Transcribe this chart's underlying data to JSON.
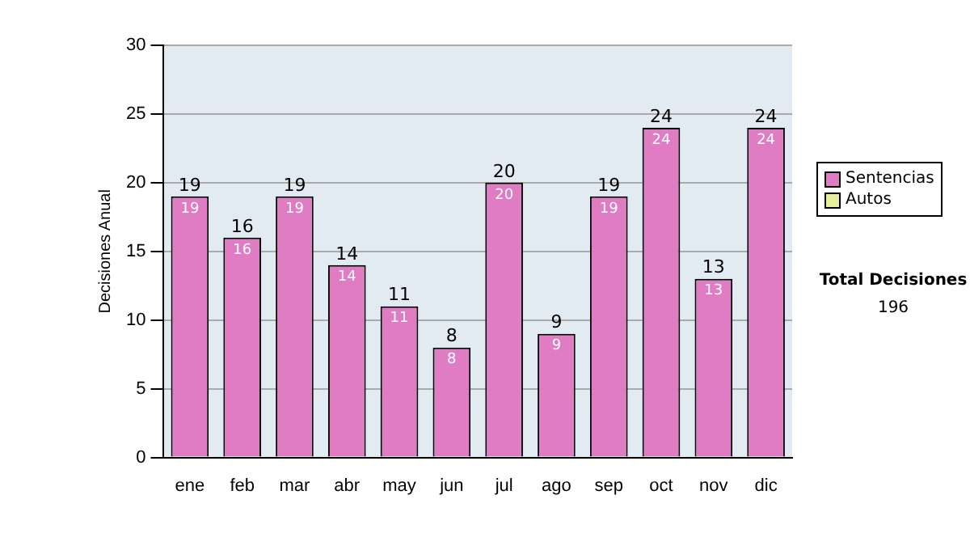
{
  "chart_data": {
    "type": "bar",
    "stacked": true,
    "ylabel": "Decisiones Anual",
    "categories": [
      "ene",
      "feb",
      "mar",
      "abr",
      "may",
      "jun",
      "jul",
      "ago",
      "sep",
      "oct",
      "nov",
      "dic"
    ],
    "series": [
      {
        "name": "Sentencias",
        "color": "#e07cc4",
        "values": [
          19,
          16,
          19,
          14,
          11,
          8,
          20,
          9,
          19,
          24,
          13,
          24
        ],
        "value_labels": [
          "19",
          "16",
          "19",
          "14",
          "11",
          "8",
          "20",
          "9",
          "19",
          "24",
          "13",
          "24"
        ]
      },
      {
        "name": "Autos",
        "color": "#e6f09c",
        "values": [
          0,
          0,
          0,
          0,
          0,
          0,
          0,
          0,
          0,
          0,
          0,
          0
        ]
      }
    ],
    "totals": [
      "19",
      "16",
      "19",
      "14",
      "11",
      "8",
      "20",
      "9",
      "19",
      "24",
      "13",
      "24"
    ],
    "ylim": [
      0,
      30
    ],
    "yticks": [
      0,
      5,
      10,
      15,
      20,
      25,
      30
    ],
    "grid": "y",
    "legend": "right",
    "annotations": [
      "Total Decisiones",
      "196"
    ]
  }
}
